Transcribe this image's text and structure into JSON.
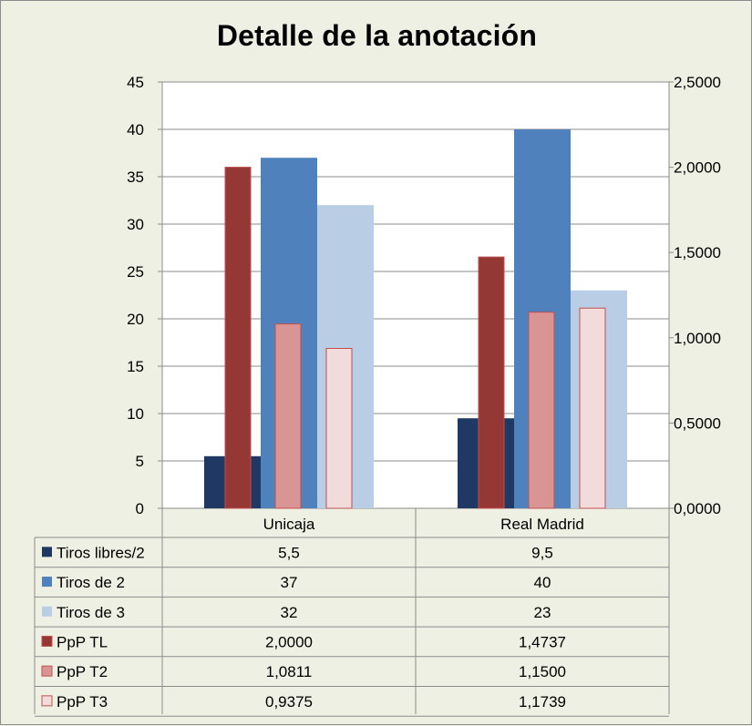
{
  "chart_data": {
    "type": "bar",
    "title": "Detalle de la anotación",
    "categories": [
      "Unicaja",
      "Real Madrid"
    ],
    "y_left": {
      "ylim": [
        0,
        45
      ],
      "ticks": [
        "0",
        "5",
        "10",
        "15",
        "20",
        "25",
        "30",
        "35",
        "40",
        "45"
      ]
    },
    "y_right": {
      "ylim": [
        0,
        2.5
      ],
      "ticks": [
        "0,0000",
        "0,5000",
        "1,0000",
        "1,5000",
        "2,0000",
        "2,5000"
      ]
    },
    "grid": true,
    "legend": "data-table-below",
    "series": [
      {
        "name": "Tiros libres/2",
        "axis": "left",
        "color": "#1f3864",
        "values": [
          5.5,
          9.5
        ],
        "labels": [
          "5,5",
          "9,5"
        ]
      },
      {
        "name": "Tiros de 2",
        "axis": "left",
        "color": "#4f81bd",
        "values": [
          37,
          40
        ],
        "labels": [
          "37",
          "40"
        ]
      },
      {
        "name": "Tiros de 3",
        "axis": "left",
        "color": "#b9cde5",
        "values": [
          32,
          23
        ],
        "labels": [
          "32",
          "23"
        ]
      },
      {
        "name": "PpP TL",
        "axis": "right",
        "color": "#953735",
        "values": [
          2.0,
          1.4737
        ],
        "labels": [
          "2,0000",
          "1,4737"
        ]
      },
      {
        "name": "PpP T2",
        "axis": "right",
        "color": "#d99594",
        "values": [
          1.0811,
          1.15
        ],
        "labels": [
          "1,0811",
          "1,1500"
        ]
      },
      {
        "name": "PpP T3",
        "axis": "right",
        "color": "#f2dcdb",
        "values": [
          0.9375,
          1.1739
        ],
        "labels": [
          "0,9375",
          "1,1739"
        ]
      }
    ]
  }
}
